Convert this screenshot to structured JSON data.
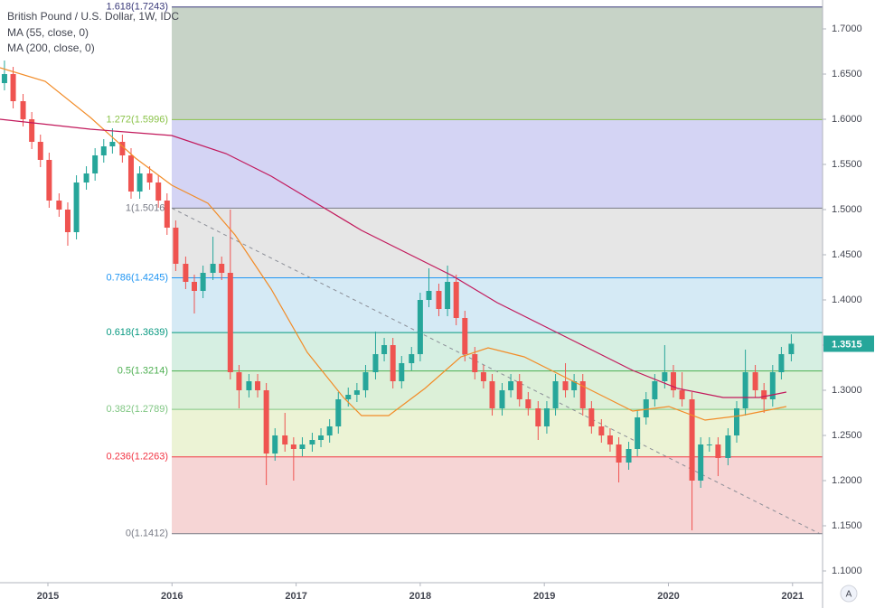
{
  "chart_data": {
    "type": "candlestick",
    "title": "British Pound / U.S. Dollar, 1W, IDC",
    "indicators": [
      {
        "name": "MA (55, close, 0)",
        "color": "#f28c28",
        "x": [
          2014.614,
          2014.978,
          2015.342,
          2015.706,
          2015.998,
          2016.289,
          2016.508,
          2016.799,
          2017.09,
          2017.382,
          2017.527,
          2017.746,
          2018.037,
          2018.328,
          2018.547,
          2018.838,
          2019.13,
          2019.421,
          2019.712,
          2020.004,
          2020.295,
          2020.586,
          2020.95
        ],
        "values": [
          1.657,
          1.642,
          1.602,
          1.557,
          1.527,
          1.507,
          1.472,
          1.412,
          1.342,
          1.292,
          1.272,
          1.272,
          1.302,
          1.337,
          1.347,
          1.337,
          1.317,
          1.297,
          1.277,
          1.282,
          1.267,
          1.272,
          1.282
        ]
      },
      {
        "name": "MA (200, close, 0)",
        "color": "#c2185b",
        "x": [
          2014.614,
          2015.342,
          2015.998,
          2016.435,
          2016.799,
          2017.163,
          2017.527,
          2017.891,
          2018.256,
          2018.62,
          2018.984,
          2019.348,
          2019.712,
          2020.076,
          2020.441,
          2020.732,
          2020.95
        ],
        "values": [
          1.6,
          1.589,
          1.582,
          1.562,
          1.537,
          1.507,
          1.477,
          1.452,
          1.427,
          1.397,
          1.372,
          1.347,
          1.322,
          1.302,
          1.292,
          1.292,
          1.298
        ]
      }
    ],
    "x": [
      2014.65,
      2014.72,
      2014.8,
      2014.87,
      2014.94,
      2015.01,
      2015.09,
      2015.16,
      2015.23,
      2015.31,
      2015.38,
      2015.45,
      2015.52,
      2015.6,
      2015.67,
      2015.74,
      2015.82,
      2015.89,
      2015.96,
      2016.03,
      2016.11,
      2016.18,
      2016.25,
      2016.33,
      2016.4,
      2016.47,
      2016.54,
      2016.62,
      2016.69,
      2016.76,
      2016.83,
      2016.91,
      2016.98,
      2017.05,
      2017.13,
      2017.2,
      2017.27,
      2017.34,
      2017.42,
      2017.49,
      2017.56,
      2017.64,
      2017.71,
      2017.78,
      2017.85,
      2017.93,
      2018.0,
      2018.07,
      2018.15,
      2018.22,
      2018.29,
      2018.36,
      2018.44,
      2018.51,
      2018.58,
      2018.66,
      2018.73,
      2018.8,
      2018.87,
      2018.95,
      2019.02,
      2019.09,
      2019.17,
      2019.24,
      2019.31,
      2019.38,
      2019.46,
      2019.53,
      2019.6,
      2019.68,
      2019.75,
      2019.82,
      2019.89,
      2019.97,
      2020.04,
      2020.11,
      2020.19,
      2020.26,
      2020.33,
      2020.4,
      2020.48,
      2020.55,
      2020.62,
      2020.7,
      2020.77,
      2020.84,
      2020.91,
      2020.99
    ],
    "open": [
      1.64,
      1.65,
      1.62,
      1.6,
      1.575,
      1.555,
      1.51,
      1.5,
      1.475,
      1.53,
      1.54,
      1.56,
      1.57,
      1.575,
      1.56,
      1.52,
      1.54,
      1.53,
      1.51,
      1.48,
      1.44,
      1.42,
      1.41,
      1.43,
      1.44,
      1.43,
      1.32,
      1.3,
      1.31,
      1.3,
      1.23,
      1.25,
      1.24,
      1.235,
      1.24,
      1.245,
      1.25,
      1.26,
      1.29,
      1.295,
      1.3,
      1.32,
      1.34,
      1.35,
      1.31,
      1.33,
      1.34,
      1.4,
      1.41,
      1.39,
      1.42,
      1.38,
      1.34,
      1.32,
      1.31,
      1.28,
      1.3,
      1.31,
      1.29,
      1.28,
      1.26,
      1.28,
      1.31,
      1.3,
      1.31,
      1.28,
      1.26,
      1.25,
      1.24,
      1.22,
      1.235,
      1.27,
      1.29,
      1.31,
      1.32,
      1.3,
      1.29,
      1.2,
      1.24,
      1.24,
      1.225,
      1.25,
      1.28,
      1.32,
      1.3,
      1.29,
      1.32,
      1.34
    ],
    "high": [
      1.665,
      1.658,
      1.628,
      1.608,
      1.583,
      1.563,
      1.518,
      1.508,
      1.538,
      1.548,
      1.568,
      1.578,
      1.59,
      1.583,
      1.568,
      1.548,
      1.548,
      1.538,
      1.518,
      1.488,
      1.448,
      1.428,
      1.438,
      1.47,
      1.448,
      1.5,
      1.328,
      1.318,
      1.318,
      1.308,
      1.258,
      1.275,
      1.248,
      1.248,
      1.253,
      1.258,
      1.268,
      1.298,
      1.303,
      1.308,
      1.328,
      1.365,
      1.358,
      1.358,
      1.338,
      1.348,
      1.408,
      1.435,
      1.418,
      1.438,
      1.428,
      1.388,
      1.348,
      1.328,
      1.318,
      1.308,
      1.318,
      1.318,
      1.298,
      1.288,
      1.288,
      1.318,
      1.33,
      1.318,
      1.318,
      1.288,
      1.268,
      1.258,
      1.248,
      1.243,
      1.278,
      1.298,
      1.318,
      1.35,
      1.328,
      1.32,
      1.298,
      1.248,
      1.248,
      1.248,
      1.258,
      1.288,
      1.345,
      1.328,
      1.308,
      1.328,
      1.348,
      1.362
    ],
    "low": [
      1.632,
      1.612,
      1.592,
      1.567,
      1.547,
      1.502,
      1.492,
      1.46,
      1.467,
      1.522,
      1.532,
      1.552,
      1.562,
      1.552,
      1.512,
      1.512,
      1.522,
      1.502,
      1.472,
      1.432,
      1.412,
      1.385,
      1.402,
      1.422,
      1.422,
      1.312,
      1.28,
      1.292,
      1.292,
      1.195,
      1.222,
      1.232,
      1.2,
      1.227,
      1.232,
      1.237,
      1.242,
      1.252,
      1.282,
      1.287,
      1.292,
      1.312,
      1.332,
      1.302,
      1.302,
      1.322,
      1.332,
      1.392,
      1.382,
      1.382,
      1.372,
      1.332,
      1.312,
      1.302,
      1.272,
      1.272,
      1.292,
      1.282,
      1.272,
      1.245,
      1.252,
      1.272,
      1.292,
      1.292,
      1.272,
      1.252,
      1.242,
      1.232,
      1.198,
      1.212,
      1.227,
      1.262,
      1.282,
      1.302,
      1.292,
      1.282,
      1.145,
      1.192,
      1.232,
      1.205,
      1.217,
      1.242,
      1.272,
      1.292,
      1.275,
      1.282,
      1.312,
      1.332
    ],
    "close": [
      1.65,
      1.62,
      1.6,
      1.575,
      1.555,
      1.51,
      1.5,
      1.475,
      1.53,
      1.54,
      1.56,
      1.57,
      1.575,
      1.56,
      1.52,
      1.54,
      1.53,
      1.51,
      1.48,
      1.44,
      1.42,
      1.41,
      1.43,
      1.44,
      1.43,
      1.32,
      1.3,
      1.31,
      1.3,
      1.23,
      1.25,
      1.24,
      1.235,
      1.24,
      1.245,
      1.25,
      1.26,
      1.29,
      1.295,
      1.3,
      1.32,
      1.34,
      1.35,
      1.31,
      1.33,
      1.34,
      1.4,
      1.41,
      1.39,
      1.42,
      1.38,
      1.34,
      1.32,
      1.31,
      1.28,
      1.3,
      1.31,
      1.29,
      1.28,
      1.26,
      1.28,
      1.31,
      1.3,
      1.31,
      1.28,
      1.26,
      1.25,
      1.24,
      1.22,
      1.235,
      1.27,
      1.29,
      1.31,
      1.32,
      1.3,
      1.29,
      1.2,
      1.24,
      1.24,
      1.225,
      1.25,
      1.28,
      1.32,
      1.3,
      1.29,
      1.32,
      1.34,
      1.3515
    ],
    "up_color": "#26a69a",
    "down_color": "#ef5350",
    "fib_start_x": 2015.998,
    "fib_levels": [
      {
        "label": "0(1.1412)",
        "value": 1.1412,
        "color": "#787b86"
      },
      {
        "label": "0.236(1.2263)",
        "value": 1.2263,
        "color": "#f23645"
      },
      {
        "label": "0.382(1.2789)",
        "value": 1.2789,
        "color": "#81c784"
      },
      {
        "label": "0.5(1.3214)",
        "value": 1.3214,
        "color": "#4caf50"
      },
      {
        "label": "0.618(1.3639)",
        "value": 1.3639,
        "color": "#089981"
      },
      {
        "label": "0.786(1.4245)",
        "value": 1.4245,
        "color": "#2196f3"
      },
      {
        "label": "1(1.5016)",
        "value": 1.5016,
        "color": "#787b86"
      },
      {
        "label": "1.272(1.5996)",
        "value": 1.5996,
        "color": "#8bc34a"
      },
      {
        "label": "1.618(1.7243)",
        "value": 1.7243,
        "color": "#3a3a7a"
      }
    ],
    "zone_colors": [
      "#f6d5d5",
      "#ecf3d5",
      "#dcf0d8",
      "#d6efe2",
      "#d5eaf5",
      "#e6e6e6",
      "#d4d4f4",
      "#c7d3c7"
    ],
    "trend_line": {
      "x": [
        2015.998,
        2021.22
      ],
      "values": [
        1.5016,
        1.1412
      ],
      "color": "#8a8d96"
    },
    "xlim": [
      2014.614,
      2021.242
    ],
    "ylim": [
      1.087,
      1.732
    ],
    "xticks": [
      2015,
      2016,
      2017,
      2018,
      2019,
      2020,
      2021
    ],
    "yticks": [
      {
        "value": 1.1,
        "label": "1.1000"
      },
      {
        "value": 1.15,
        "label": "1.1500"
      },
      {
        "value": 1.2,
        "label": "1.2000"
      },
      {
        "value": 1.25,
        "label": "1.2500"
      },
      {
        "value": 1.3,
        "label": "1.3000"
      },
      {
        "value": 1.35,
        "label": "1.3500"
      },
      {
        "value": 1.4,
        "label": "1.4000"
      },
      {
        "value": 1.45,
        "label": "1.4500"
      },
      {
        "value": 1.5,
        "label": "1.5000"
      },
      {
        "value": 1.55,
        "label": "1.5500"
      },
      {
        "value": 1.6,
        "label": "1.6000"
      },
      {
        "value": 1.65,
        "label": "1.6500"
      },
      {
        "value": 1.7,
        "label": "1.7000"
      }
    ],
    "scale_button": "A"
  }
}
